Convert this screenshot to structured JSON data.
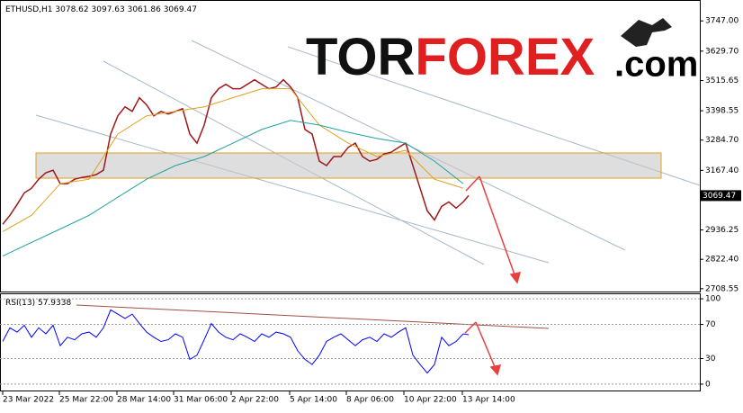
{
  "logo": {
    "brand": "TOR",
    "highlight": "FOREX",
    "suffix": ".com"
  },
  "chart_data": [
    {
      "type": "line",
      "symbol": "ETHUSD,H1",
      "ohlc": {
        "open": 3078.62,
        "high": 3097.63,
        "low": 3061.86,
        "close": 3069.47
      },
      "ylim": [
        2694,
        3828
      ],
      "yticks": [
        {
          "value": 3747,
          "label": "3747.00"
        },
        {
          "value": 3629.7,
          "label": "3629.70"
        },
        3515.65,
        3398.55,
        {
          "value": 3284.7,
          "label": "3284.70"
        },
        {
          "value": 3167.4,
          "label": "3167.40"
        },
        2936.25,
        {
          "value": 2822.4,
          "label": "2822.40"
        },
        2708.55
      ],
      "xlim": [
        -3,
        775
      ],
      "xticks": [
        {
          "value": 0,
          "label": "23 Mar 2022"
        },
        {
          "value": 63,
          "label": "25 Mar 22:00"
        },
        {
          "value": 127,
          "label": "28 Mar 14:00"
        },
        {
          "value": 190,
          "label": "31 Mar 06:00"
        },
        {
          "value": 254,
          "label": "2 Apr 22:00"
        },
        {
          "value": 319,
          "label": "5 Apr 14:00"
        },
        {
          "value": 382,
          "label": "8 Apr 06:00"
        },
        {
          "value": 446,
          "label": "10 Apr 22:00"
        },
        {
          "value": 511,
          "label": "13 Apr 14:00"
        }
      ],
      "grid": false,
      "series": [
        {
          "color": "#a01818",
          "x": [
            0,
            8,
            16,
            24,
            32,
            40,
            48,
            56,
            64,
            72,
            80,
            88,
            96,
            104,
            112,
            120,
            128,
            136,
            144,
            152,
            160,
            168,
            176,
            184,
            192,
            200,
            208,
            216,
            224,
            232,
            240,
            248,
            256,
            264,
            272,
            280,
            288,
            296,
            304,
            312,
            320,
            328,
            336,
            344,
            352,
            360,
            368,
            376,
            384,
            392,
            400,
            408,
            416,
            424,
            432,
            440,
            448,
            456,
            464,
            472,
            480,
            488,
            496,
            504,
            512,
            518
          ],
          "values": [
            2958,
            2993,
            3035,
            3080,
            3098,
            3133,
            3158,
            3168,
            3116,
            3116,
            3133,
            3140,
            3144,
            3151,
            3168,
            3308,
            3379,
            3414,
            3396,
            3449,
            3421,
            3379,
            3396,
            3386,
            3396,
            3407,
            3308,
            3273,
            3343,
            3449,
            3484,
            3501,
            3484,
            3484,
            3501,
            3519,
            3501,
            3484,
            3491,
            3519,
            3491,
            3449,
            3326,
            3308,
            3203,
            3186,
            3221,
            3221,
            3256,
            3273,
            3221,
            3203,
            3210,
            3231,
            3238,
            3256,
            3273,
            3186,
            3098,
            3010,
            2975,
            3028,
            3045,
            3021,
            3045,
            3069.47
          ]
        },
        {
          "color": "#e0a020",
          "x": [
            0,
            32,
            64,
            96,
            128,
            160,
            192,
            224,
            256,
            288,
            320,
            352,
            384,
            416,
            448,
            480,
            512
          ],
          "values": [
            2930,
            2993,
            3116,
            3133,
            3308,
            3379,
            3396,
            3414,
            3449,
            3484,
            3484,
            3343,
            3273,
            3221,
            3245,
            3133,
            3098
          ]
        },
        {
          "color": "#20a0a0",
          "x": [
            0,
            32,
            64,
            96,
            128,
            160,
            192,
            224,
            256,
            288,
            320,
            352,
            384,
            416,
            448,
            480,
            512
          ],
          "values": [
            2835,
            2888,
            2940,
            2993,
            3063,
            3133,
            3186,
            3221,
            3273,
            3326,
            3361,
            3343,
            3315,
            3291,
            3273,
            3203,
            3116
          ]
        }
      ]
    },
    {
      "type": "line",
      "indicator": "RSI(13)",
      "last": 57.9338,
      "ylim": [
        -8.5,
        106.4
      ],
      "yticks": [
        100,
        70,
        30,
        0
      ],
      "xlim": [
        -3,
        775
      ],
      "grid": "dashed",
      "series": [
        {
          "color": "#0000ff",
          "x": [
            0,
            8,
            16,
            24,
            32,
            40,
            48,
            56,
            64,
            72,
            80,
            88,
            96,
            104,
            112,
            120,
            128,
            136,
            144,
            152,
            160,
            168,
            176,
            184,
            192,
            200,
            208,
            216,
            224,
            232,
            240,
            248,
            256,
            264,
            272,
            280,
            288,
            296,
            304,
            312,
            320,
            328,
            336,
            344,
            352,
            360,
            368,
            376,
            384,
            392,
            400,
            408,
            416,
            424,
            432,
            440,
            448,
            456,
            464,
            472,
            480,
            488,
            496,
            504,
            512,
            518
          ],
          "values": [
            50,
            66,
            61,
            69,
            55,
            66,
            59,
            69,
            45,
            55,
            52,
            59,
            61,
            55,
            66,
            87,
            82,
            77,
            82,
            71,
            61,
            55,
            50,
            52,
            59,
            55,
            29,
            34,
            52,
            71,
            61,
            55,
            52,
            59,
            55,
            50,
            59,
            55,
            61,
            59,
            55,
            39,
            29,
            23,
            34,
            50,
            55,
            59,
            52,
            45,
            52,
            55,
            50,
            59,
            55,
            61,
            66,
            34,
            23,
            13,
            23,
            55,
            45,
            50,
            59,
            57.9338
          ]
        }
      ]
    }
  ]
}
